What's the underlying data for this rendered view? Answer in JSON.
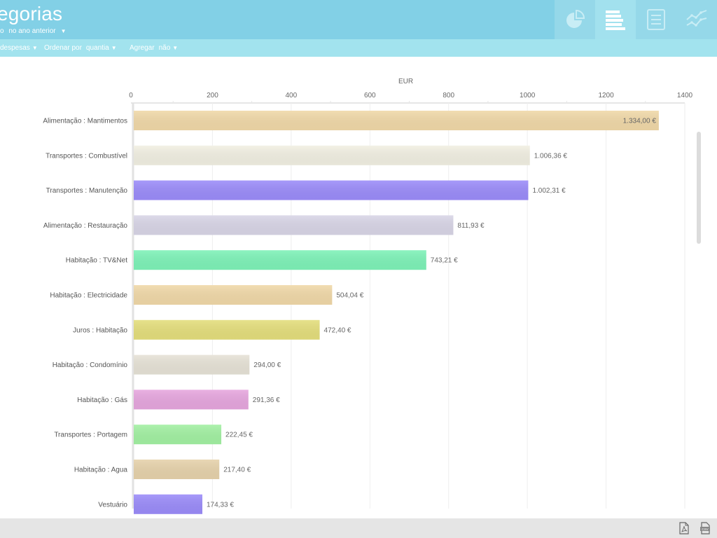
{
  "header": {
    "title": "egorias",
    "subtitle_prefix": "o",
    "comparison": "no ano anterior",
    "view_tabs": [
      {
        "icon": "pie-chart-icon",
        "active": false
      },
      {
        "icon": "bar-chart-icon",
        "active": true
      },
      {
        "icon": "document-list-icon",
        "active": false
      },
      {
        "icon": "line-chart-icon",
        "active": false
      }
    ]
  },
  "toolbar": {
    "type_value": "despesas",
    "order_label": "Ordenar por",
    "order_value": "quantia",
    "aggregate_label": "Agregar",
    "aggregate_value": "não"
  },
  "footer": {
    "icons": [
      "pdf-export-icon",
      "csv-export-icon"
    ]
  },
  "chart_data": {
    "type": "bar",
    "orientation": "horizontal",
    "title": "",
    "xlabel": "EUR",
    "ylabel": "",
    "xlim": [
      0,
      1400
    ],
    "x_ticks": [
      "0",
      "200",
      "400",
      "600",
      "800",
      "1000",
      "1200",
      "1400"
    ],
    "grid": true,
    "categories": [
      "Alimentação : Mantimentos",
      "Transportes : Combustível",
      "Transportes : Manutenção",
      "Alimentação : Restauração",
      "Habitação : TV&Net",
      "Habitação : Electricidade",
      "Juros : Habitação",
      "Habitação : Condomínio",
      "Habitação : Gás",
      "Transportes : Portagem",
      "Habitação : Agua",
      "Vestuário"
    ],
    "values": [
      1334.0,
      1006.36,
      1002.31,
      811.93,
      743.21,
      504.04,
      472.4,
      294.0,
      291.36,
      222.45,
      217.4,
      174.33
    ],
    "value_labels": [
      "1.334,00 €",
      "1.006,36 €",
      "1.002,31 €",
      "811,93 €",
      "743,21 €",
      "504,04 €",
      "472,40 €",
      "294,00 €",
      "291,36 €",
      "222,45 €",
      "217,40 €",
      "174,33 €"
    ],
    "colors": [
      "#f0d8a8",
      "#f1efe2",
      "#9b8cf9",
      "#d8d5e6",
      "#7ef2b8",
      "#f0d8a8",
      "#e4de7c",
      "#e6e2d6",
      "#e6a6de",
      "#a2f0a2",
      "#e6d2ab",
      "#9b8cf9"
    ]
  }
}
